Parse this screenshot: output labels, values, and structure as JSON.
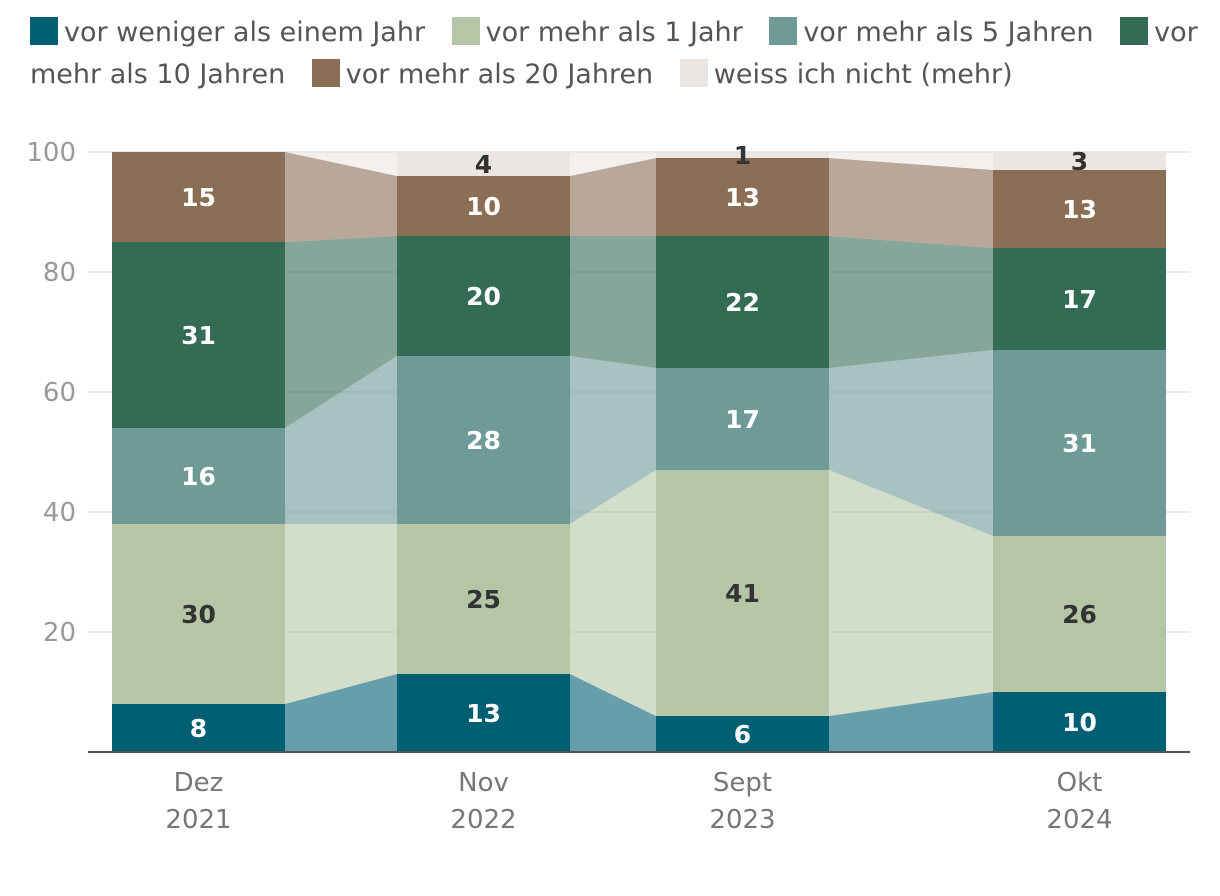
{
  "chart_data": {
    "type": "bar",
    "stacked": true,
    "categories": [
      {
        "line1": "Dez",
        "line2": "2021"
      },
      {
        "line1": "Nov",
        "line2": "2022"
      },
      {
        "line1": "Sept",
        "line2": "2023"
      },
      {
        "line1": "Okt",
        "line2": "2024"
      }
    ],
    "series": [
      {
        "name": "vor weniger als einem Jahr",
        "color": "#005f73",
        "label_color": "#ffffff",
        "values": [
          8,
          13,
          6,
          10
        ]
      },
      {
        "name": "vor mehr als 1 Jahr",
        "color": "#b4c6a6",
        "label_color": "#333333",
        "values": [
          30,
          25,
          41,
          26
        ]
      },
      {
        "name": "vor mehr als 5 Jahren",
        "color": "#6e9a98",
        "label_color": "#ffffff",
        "values": [
          16,
          28,
          17,
          31
        ]
      },
      {
        "name": "vor mehr als 10 Jahren",
        "color": "#336b54",
        "label_color": "#ffffff",
        "values": [
          31,
          20,
          22,
          17
        ]
      },
      {
        "name": "vor mehr als 20 Jahren",
        "color": "#8b6e56",
        "label_color": "#ffffff",
        "values": [
          15,
          10,
          13,
          13
        ]
      },
      {
        "name": "weiss ich nicht (mehr)",
        "color": "#ebe6e1",
        "label_color": "#333333",
        "values": [
          0,
          4,
          1,
          3
        ]
      }
    ],
    "ylim": [
      0,
      100
    ],
    "yticks": [
      20,
      40,
      60,
      80,
      100
    ],
    "xlabel": "",
    "ylabel": "",
    "title": ""
  }
}
